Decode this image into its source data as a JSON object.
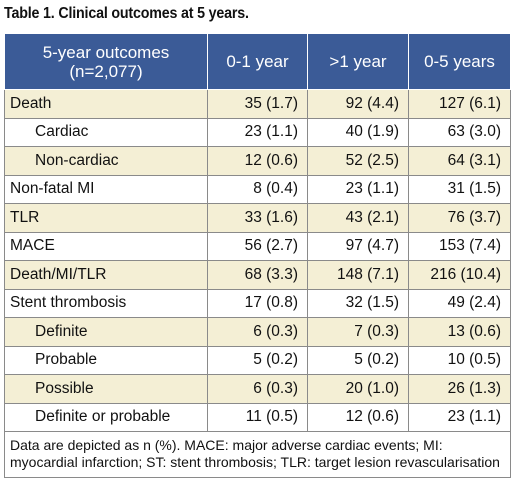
{
  "title": "Table 1. Clinical outcomes at 5 years.",
  "header": {
    "col1_line1": "5-year outcomes",
    "col1_line2": "(n=2,077)",
    "col2": "0-1 year",
    "col3": ">1 year",
    "col4": "0-5 years"
  },
  "rows": [
    {
      "label": "Death",
      "c1": "35 (1.7)",
      "c2": "92 (4.4)",
      "c3": "127 (6.1)"
    },
    {
      "label": "Cardiac",
      "c1": "23 (1.1)",
      "c2": "40 (1.9)",
      "c3": "63 (3.0)"
    },
    {
      "label": "Non-cardiac",
      "c1": "12 (0.6)",
      "c2": "52 (2.5)",
      "c3": "64 (3.1)"
    },
    {
      "label": "Non-fatal MI",
      "c1": "8 (0.4)",
      "c2": "23 (1.1)",
      "c3": "31 (1.5)"
    },
    {
      "label": "TLR",
      "c1": "33 (1.6)",
      "c2": "43 (2.1)",
      "c3": "76 (3.7)"
    },
    {
      "label": "MACE",
      "c1": "56 (2.7)",
      "c2": "97 (4.7)",
      "c3": "153 (7.4)"
    },
    {
      "label": "Death/MI/TLR",
      "c1": "68 (3.3)",
      "c2": "148 (7.1)",
      "c3": "216 (10.4)"
    },
    {
      "label": "Stent thrombosis",
      "c1": "17 (0.8)",
      "c2": "32 (1.5)",
      "c3": "49 (2.4)"
    },
    {
      "label": "Definite",
      "c1": "6 (0.3)",
      "c2": "7 (0.3)",
      "c3": "13 (0.6)"
    },
    {
      "label": "Probable",
      "c1": "5 (0.2)",
      "c2": "5 (0.2)",
      "c3": "10 (0.5)"
    },
    {
      "label": "Possible",
      "c1": "6 (0.3)",
      "c2": "20 (1.0)",
      "c3": "26 (1.3)"
    },
    {
      "label": "Definite or probable",
      "c1": "11 (0.5)",
      "c2": "12 (0.6)",
      "c3": "23 (1.1)"
    }
  ],
  "footnote": "Data are depicted as n (%). MACE: major adverse cardiac events; MI: myocardial infarction; ST: stent thrombosis; TLR: target lesion revascularisation"
}
